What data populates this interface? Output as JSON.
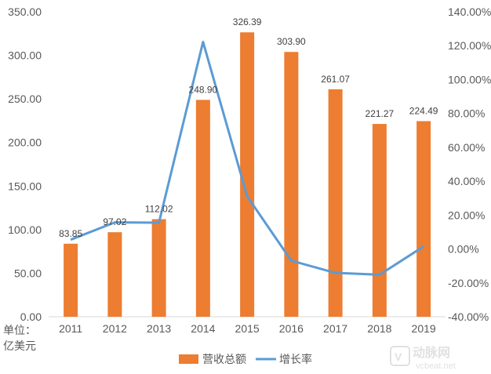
{
  "chart_data": {
    "type": "bar",
    "categories": [
      "2011",
      "2012",
      "2013",
      "2014",
      "2015",
      "2016",
      "2017",
      "2018",
      "2019"
    ],
    "series": [
      {
        "name": "营收总额",
        "type": "bar",
        "axis": "left",
        "color": "#ed7d31",
        "values": [
          83.85,
          97.02,
          112.02,
          248.9,
          326.39,
          303.9,
          261.07,
          221.27,
          224.49
        ],
        "labels": [
          "83.85",
          "97.02",
          "112.02",
          "248.90",
          "326.39",
          "303.90",
          "261.07",
          "221.27",
          "224.49"
        ]
      },
      {
        "name": "增长率",
        "type": "line",
        "axis": "right",
        "color": "#5b9bd5",
        "values": [
          5.5,
          15.7,
          15.5,
          122.2,
          31.1,
          -6.9,
          -14.1,
          -15.2,
          1.5
        ]
      }
    ],
    "left_axis": {
      "ylim": [
        0,
        350
      ],
      "ticks": [
        "0.00",
        "50.00",
        "100.00",
        "150.00",
        "200.00",
        "250.00",
        "300.00",
        "350.00"
      ]
    },
    "right_axis": {
      "ylim": [
        -40,
        140
      ],
      "ticks": [
        "-40.00%",
        "-20.00%",
        "0.00%",
        "20.00%",
        "40.00%",
        "60.00%",
        "80.00%",
        "100.00%",
        "120.00%",
        "140.00%"
      ]
    },
    "unit_label": [
      "单位：",
      "亿美元"
    ],
    "legend_position": "bottom",
    "grid": false
  },
  "watermark": {
    "cn": "动脉网",
    "en": "vcbeat.net"
  }
}
